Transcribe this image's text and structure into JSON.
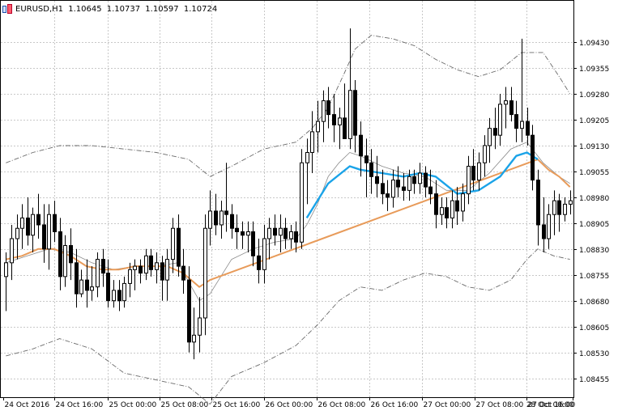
{
  "header": {
    "symbol": "EURUSD,H1",
    "open": "1.10645",
    "high": "1.10737",
    "low": "1.10597",
    "close": "1.10724"
  },
  "chart_data": {
    "type": "candlestick",
    "instrument": "EURUSD",
    "timeframe": "H1",
    "grid": true,
    "y_axis": {
      "position": "right",
      "range": [
        1.084,
        1.0955
      ],
      "ticks": [
        1.0943,
        1.09355,
        1.0928,
        1.09205,
        1.0913,
        1.09055,
        1.0898,
        1.08905,
        1.0883,
        1.08755,
        1.0868,
        1.08605,
        1.0853,
        1.08455
      ]
    },
    "x_axis": {
      "start": "24 Oct 2016 00:00",
      "bar_interval_hours": 1,
      "visible_bars": 106,
      "ticks": [
        {
          "label": "24 Oct 2016",
          "bar": 0
        },
        {
          "label": "24 Oct 16:00",
          "bar": 9.5
        },
        {
          "label": "25 Oct 00:00",
          "bar": 19.4
        },
        {
          "label": "25 Oct 08:00",
          "bar": 29.1
        },
        {
          "label": "25 Oct 16:00",
          "bar": 38.8
        },
        {
          "label": "26 Oct 00:00",
          "bar": 48.6
        },
        {
          "label": "26 Oct 08:00",
          "bar": 58.4
        },
        {
          "label": "26 Oct 16:00",
          "bar": 68.1
        },
        {
          "label": "27 Oct 00:00",
          "bar": 77.9
        },
        {
          "label": "27 Oct 08:00",
          "bar": 87.7
        },
        {
          "label": "27 Oct 16:00",
          "bar": 97.4
        },
        {
          "label": "28 Oct 00:00",
          "bar": 106
        }
      ]
    },
    "candles": [
      [
        1.0875,
        1.0882,
        1.0865,
        1.0879
      ],
      [
        1.0879,
        1.089,
        1.0874,
        1.0886
      ],
      [
        1.0886,
        1.0893,
        1.088,
        1.0889
      ],
      [
        1.0889,
        1.0896,
        1.0883,
        1.0892
      ],
      [
        1.0892,
        1.0898,
        1.0884,
        1.0887
      ],
      [
        1.0887,
        1.0895,
        1.0882,
        1.0893
      ],
      [
        1.0893,
        1.0899,
        1.0886,
        1.089
      ],
      [
        1.089,
        1.0896,
        1.0879,
        1.0883
      ],
      [
        1.0883,
        1.0896,
        1.0877,
        1.0893
      ],
      [
        1.0893,
        1.0897,
        1.0885,
        1.0888
      ],
      [
        1.0888,
        1.0892,
        1.0871,
        1.0875
      ],
      [
        1.0875,
        1.0887,
        1.0872,
        1.0884
      ],
      [
        1.0884,
        1.0889,
        1.0874,
        1.0879
      ],
      [
        1.0879,
        1.0883,
        1.0866,
        1.087
      ],
      [
        1.087,
        1.0877,
        1.0869,
        1.0874
      ],
      [
        1.0874,
        1.088,
        1.0866,
        1.0871
      ],
      [
        1.0871,
        1.0878,
        1.0868,
        1.0872
      ],
      [
        1.0872,
        1.0882,
        1.0869,
        1.088
      ],
      [
        1.088,
        1.0883,
        1.0872,
        1.0876
      ],
      [
        1.0876,
        1.088,
        1.0866,
        1.0868
      ],
      [
        1.0868,
        1.0874,
        1.0866,
        1.0871
      ],
      [
        1.0871,
        1.0874,
        1.0865,
        1.0868
      ],
      [
        1.0868,
        1.0875,
        1.0866,
        1.0873
      ],
      [
        1.0873,
        1.0879,
        1.0869,
        1.0877
      ],
      [
        1.0877,
        1.088,
        1.0871,
        1.0878
      ],
      [
        1.0878,
        1.088,
        1.0873,
        1.0876
      ],
      [
        1.0876,
        1.0883,
        1.0874,
        1.0881
      ],
      [
        1.0881,
        1.0883,
        1.0875,
        1.0877
      ],
      [
        1.0877,
        1.0882,
        1.0873,
        1.0879
      ],
      [
        1.0879,
        1.0881,
        1.0868,
        1.0874
      ],
      [
        1.0874,
        1.0883,
        1.0868,
        1.088
      ],
      [
        1.088,
        1.0892,
        1.0876,
        1.0889
      ],
      [
        1.0889,
        1.0893,
        1.0875,
        1.0878
      ],
      [
        1.0878,
        1.0883,
        1.087,
        1.0874
      ],
      [
        1.0874,
        1.0878,
        1.0853,
        1.0856
      ],
      [
        1.0856,
        1.0866,
        1.0851,
        1.0858
      ],
      [
        1.0858,
        1.0869,
        1.0853,
        1.0863
      ],
      [
        1.0863,
        1.0893,
        1.0858,
        1.0889
      ],
      [
        1.0889,
        1.09,
        1.0884,
        1.0894
      ],
      [
        1.0894,
        1.0899,
        1.0887,
        1.089
      ],
      [
        1.089,
        1.0897,
        1.0886,
        1.0894
      ],
      [
        1.0894,
        1.0908,
        1.0888,
        1.0893
      ],
      [
        1.0893,
        1.0896,
        1.0886,
        1.0889
      ],
      [
        1.0889,
        1.0893,
        1.0883,
        1.0888
      ],
      [
        1.0888,
        1.0891,
        1.0883,
        1.0887
      ],
      [
        1.0887,
        1.0891,
        1.0882,
        1.0888
      ],
      [
        1.0888,
        1.0891,
        1.0878,
        1.0881
      ],
      [
        1.0881,
        1.0886,
        1.0873,
        1.0877
      ],
      [
        1.0877,
        1.089,
        1.0873,
        1.0886
      ],
      [
        1.0886,
        1.0892,
        1.088,
        1.0889
      ],
      [
        1.0889,
        1.0893,
        1.0884,
        1.0887
      ],
      [
        1.0887,
        1.0893,
        1.0882,
        1.0889
      ],
      [
        1.0889,
        1.0892,
        1.0883,
        1.0886
      ],
      [
        1.0886,
        1.089,
        1.0883,
        1.0888
      ],
      [
        1.0888,
        1.0891,
        1.0882,
        1.0885
      ],
      [
        1.0885,
        1.0912,
        1.0883,
        1.0908
      ],
      [
        1.0908,
        1.0915,
        1.0896,
        1.0911
      ],
      [
        1.0911,
        1.0923,
        1.0905,
        1.0917
      ],
      [
        1.0917,
        1.0926,
        1.0911,
        1.092
      ],
      [
        1.092,
        1.0929,
        1.0914,
        1.0926
      ],
      [
        1.0926,
        1.093,
        1.0918,
        1.0922
      ],
      [
        1.0922,
        1.0928,
        1.0914,
        1.0919
      ],
      [
        1.0919,
        1.0924,
        1.0912,
        1.0921
      ],
      [
        1.0921,
        1.0931,
        1.0916,
        1.0915
      ],
      [
        1.0915,
        1.0947,
        1.0912,
        1.0929
      ],
      [
        1.0929,
        1.0932,
        1.0911,
        1.0916
      ],
      [
        1.0916,
        1.092,
        1.0904,
        1.091
      ],
      [
        1.091,
        1.0915,
        1.0898,
        1.0908
      ],
      [
        1.0908,
        1.0912,
        1.0899,
        1.0904
      ],
      [
        1.0904,
        1.091,
        1.0898,
        1.0902
      ],
      [
        1.0902,
        1.0906,
        1.0896,
        1.0899
      ],
      [
        1.0899,
        1.0903,
        1.0894,
        1.0898
      ],
      [
        1.0898,
        1.0906,
        1.0895,
        1.0903
      ],
      [
        1.0903,
        1.0907,
        1.0898,
        1.0901
      ],
      [
        1.0901,
        1.0905,
        1.0897,
        1.09
      ],
      [
        1.09,
        1.0906,
        1.0897,
        1.0904
      ],
      [
        1.0904,
        1.0906,
        1.0899,
        1.0902
      ],
      [
        1.0902,
        1.0908,
        1.0899,
        1.0905
      ],
      [
        1.0905,
        1.0907,
        1.0898,
        1.0901
      ],
      [
        1.0901,
        1.0906,
        1.0896,
        1.0899
      ],
      [
        1.0899,
        1.0903,
        1.0889,
        1.0893
      ],
      [
        1.0893,
        1.0898,
        1.089,
        1.0895
      ],
      [
        1.0895,
        1.0898,
        1.0889,
        1.0892
      ],
      [
        1.0892,
        1.09,
        1.0889,
        1.0897
      ],
      [
        1.0897,
        1.0901,
        1.089,
        1.0894
      ],
      [
        1.0894,
        1.0902,
        1.0891,
        1.0899
      ],
      [
        1.0899,
        1.091,
        1.0896,
        1.0907
      ],
      [
        1.0907,
        1.0912,
        1.09,
        1.0903
      ],
      [
        1.0903,
        1.0911,
        1.09,
        1.0908
      ],
      [
        1.0908,
        1.0916,
        1.0904,
        1.0913
      ],
      [
        1.0913,
        1.0921,
        1.0908,
        1.0918
      ],
      [
        1.0918,
        1.0924,
        1.0912,
        1.0916
      ],
      [
        1.0916,
        1.0928,
        1.0913,
        1.0925
      ],
      [
        1.0925,
        1.093,
        1.0918,
        1.0926
      ],
      [
        1.0926,
        1.093,
        1.092,
        1.0922
      ],
      [
        1.0922,
        1.0926,
        1.0914,
        1.0918
      ],
      [
        1.0918,
        1.0944,
        1.0914,
        1.092
      ],
      [
        1.092,
        1.0924,
        1.0913,
        1.0916
      ],
      [
        1.0916,
        1.0919,
        1.09,
        1.0903
      ],
      [
        1.0903,
        1.0906,
        1.0884,
        1.089
      ],
      [
        1.089,
        1.0898,
        1.0882,
        1.0886
      ],
      [
        1.0886,
        1.0896,
        1.0883,
        1.0893
      ],
      [
        1.0893,
        1.09,
        1.0887,
        1.0897
      ],
      [
        1.0897,
        1.0899,
        1.0888,
        1.0893
      ],
      [
        1.0893,
        1.0898,
        1.0891,
        1.0896
      ],
      [
        1.0896,
        1.09,
        1.0893,
        1.0897
      ]
    ],
    "ma_fast": {
      "color": "#1aa3e8",
      "points": [
        [
          56,
          1.0892
        ],
        [
          60,
          1.0902
        ],
        [
          64,
          1.0907
        ],
        [
          66,
          1.0906
        ],
        [
          70,
          1.0905
        ],
        [
          74,
          1.0904
        ],
        [
          77,
          1.0905
        ],
        [
          80,
          1.0904
        ],
        [
          84,
          1.0899
        ],
        [
          88,
          1.09
        ],
        [
          92,
          1.0904
        ],
        [
          95,
          1.091
        ],
        [
          97,
          1.0911
        ],
        [
          99,
          1.0909
        ]
      ]
    },
    "ma_slow": {
      "color": "#e89b5a",
      "points": [
        [
          0,
          1.088
        ],
        [
          3,
          1.0881
        ],
        [
          6,
          1.0883
        ],
        [
          9,
          1.0883
        ],
        [
          12,
          1.0881
        ],
        [
          15,
          1.0878
        ],
        [
          18,
          1.0877
        ],
        [
          21,
          1.0877
        ],
        [
          24,
          1.0878
        ],
        [
          27,
          1.0878
        ],
        [
          30,
          1.0878
        ],
        [
          33,
          1.0876
        ],
        [
          36,
          1.0872
        ],
        [
          38,
          1.0874
        ],
        [
          99,
          1.0909
        ],
        [
          101,
          1.0906
        ],
        [
          103,
          1.0904
        ],
        [
          105,
          1.0901
        ]
      ]
    },
    "bb_middle": {
      "color": "#8a8a8a",
      "points": [
        [
          0,
          1.0879
        ],
        [
          4,
          1.0881
        ],
        [
          8,
          1.0883
        ],
        [
          12,
          1.0882
        ],
        [
          16,
          1.0879
        ],
        [
          20,
          1.0877
        ],
        [
          24,
          1.0878
        ],
        [
          28,
          1.0878
        ],
        [
          32,
          1.0879
        ],
        [
          36,
          1.0868
        ],
        [
          38,
          1.087
        ],
        [
          42,
          1.088
        ],
        [
          46,
          1.0883
        ],
        [
          50,
          1.0885
        ],
        [
          54,
          1.0886
        ],
        [
          56,
          1.089
        ],
        [
          58,
          1.0896
        ],
        [
          60,
          1.0904
        ],
        [
          62,
          1.0908
        ],
        [
          64,
          1.0911
        ],
        [
          66,
          1.091
        ],
        [
          70,
          1.0907
        ],
        [
          74,
          1.0905
        ],
        [
          78,
          1.0904
        ],
        [
          82,
          1.09
        ],
        [
          86,
          1.09
        ],
        [
          90,
          1.0905
        ],
        [
          94,
          1.0912
        ],
        [
          97,
          1.0914
        ],
        [
          100,
          1.0908
        ],
        [
          103,
          1.0904
        ],
        [
          105,
          1.0902
        ]
      ]
    },
    "bb_upper": {
      "color": "#6a6a6a",
      "points": [
        [
          0,
          1.0908
        ],
        [
          5,
          1.0911
        ],
        [
          10,
          1.0913
        ],
        [
          16,
          1.0913
        ],
        [
          22,
          1.0912
        ],
        [
          28,
          1.0911
        ],
        [
          34,
          1.0909
        ],
        [
          38,
          1.0904
        ],
        [
          42,
          1.0907
        ],
        [
          48,
          1.0912
        ],
        [
          54,
          1.0914
        ],
        [
          57,
          1.0918
        ],
        [
          60,
          1.0924
        ],
        [
          63,
          1.0934
        ],
        [
          65,
          1.0941
        ],
        [
          68,
          1.0945
        ],
        [
          72,
          1.0944
        ],
        [
          76,
          1.0942
        ],
        [
          80,
          1.0938
        ],
        [
          84,
          1.0935
        ],
        [
          88,
          1.0933
        ],
        [
          92,
          1.0935
        ],
        [
          96,
          1.094
        ],
        [
          100,
          1.094
        ],
        [
          103,
          1.0933
        ],
        [
          105,
          1.0928
        ]
      ]
    },
    "bb_lower": {
      "color": "#6a6a6a",
      "points": [
        [
          0,
          1.0852
        ],
        [
          5,
          1.0854
        ],
        [
          10,
          1.0857
        ],
        [
          16,
          1.0854
        ],
        [
          22,
          1.0847
        ],
        [
          28,
          1.0845
        ],
        [
          34,
          1.0843
        ],
        [
          38,
          1.0838
        ],
        [
          42,
          1.0846
        ],
        [
          48,
          1.085
        ],
        [
          54,
          1.0855
        ],
        [
          58,
          1.0861
        ],
        [
          62,
          1.0868
        ],
        [
          66,
          1.0872
        ],
        [
          70,
          1.0871
        ],
        [
          74,
          1.0874
        ],
        [
          78,
          1.0876
        ],
        [
          82,
          1.0875
        ],
        [
          86,
          1.0872
        ],
        [
          90,
          1.0871
        ],
        [
          94,
          1.0874
        ],
        [
          97,
          1.088
        ],
        [
          99,
          1.0883
        ],
        [
          102,
          1.0881
        ],
        [
          105,
          1.088
        ]
      ]
    }
  }
}
